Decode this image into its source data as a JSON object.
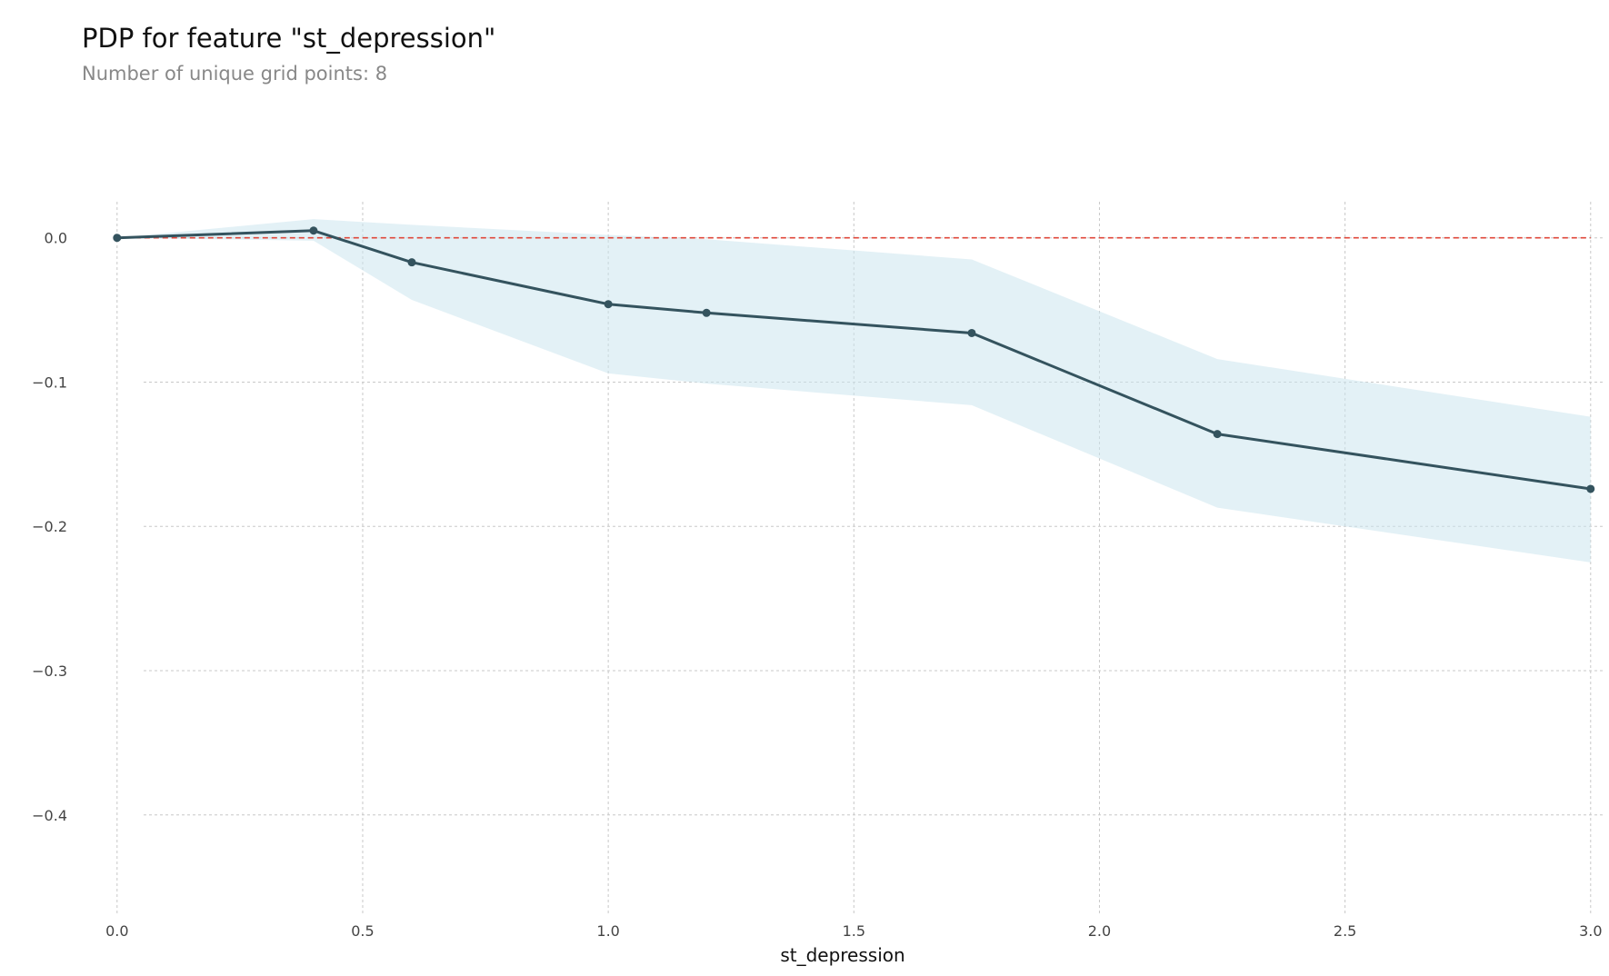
{
  "chart_data": {
    "type": "line",
    "title": "PDP for feature \"st_depression\"",
    "subtitle": "Number of unique grid points: 8",
    "xlabel": "st_depression",
    "ylabel": "",
    "xlim": [
      -0.02,
      3.03
    ],
    "ylim": [
      -0.465,
      0.025
    ],
    "x_ticks": [
      0.0,
      0.5,
      1.0,
      1.5,
      2.0,
      2.5,
      3.0
    ],
    "x_tick_labels": [
      "0.0",
      "0.5",
      "1.0",
      "1.5",
      "2.0",
      "2.5",
      "3.0"
    ],
    "y_ticks": [
      0.0,
      -0.1,
      -0.2,
      -0.3,
      -0.4
    ],
    "y_tick_labels": [
      "0.0",
      "−0.1",
      "−0.2",
      "−0.3",
      "−0.4"
    ],
    "grid": true,
    "series": [
      {
        "x": [
          0.0,
          0.4,
          0.6,
          1.0,
          1.2,
          1.74,
          2.24,
          3.0
        ],
        "values": [
          0.0,
          0.005,
          -0.017,
          -0.046,
          -0.052,
          -0.066,
          -0.136,
          -0.174
        ],
        "upper": [
          0.0,
          0.013,
          0.009,
          0.002,
          -0.001,
          -0.015,
          -0.084,
          -0.124
        ],
        "lower": [
          0.0,
          -0.002,
          -0.043,
          -0.094,
          -0.101,
          -0.116,
          -0.187,
          -0.225
        ]
      }
    ],
    "reference_line": {
      "y": 0.0,
      "x_range": [
        0.0,
        3.0
      ]
    },
    "colors": {
      "line": "#34535e",
      "band": "#cce6ee",
      "reference": "#e0473a"
    }
  }
}
